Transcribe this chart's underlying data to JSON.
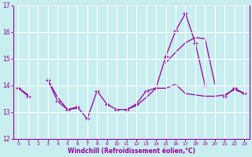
{
  "x": [
    0,
    1,
    2,
    3,
    4,
    5,
    6,
    7,
    8,
    9,
    10,
    11,
    12,
    13,
    14,
    15,
    16,
    17,
    18,
    19,
    20,
    21,
    22,
    23
  ],
  "line_spiky": [
    13.9,
    13.6,
    null,
    14.2,
    13.4,
    13.1,
    13.2,
    12.75,
    13.8,
    13.3,
    13.1,
    13.1,
    13.3,
    13.8,
    13.9,
    15.1,
    16.05,
    16.7,
    15.6,
    14.0,
    null,
    13.6,
    13.9,
    13.7
  ],
  "line_smooth": [
    13.9,
    13.65,
    null,
    14.2,
    13.55,
    13.1,
    13.15,
    null,
    null,
    null,
    null,
    13.1,
    13.25,
    13.55,
    13.9,
    13.9,
    14.05,
    13.7,
    13.65,
    13.6,
    13.6,
    13.65,
    13.85,
    13.7
  ],
  "line_rising": [
    13.9,
    null,
    null,
    14.2,
    null,
    null,
    null,
    null,
    null,
    null,
    null,
    null,
    null,
    null,
    null,
    14.85,
    15.25,
    15.6,
    15.8,
    15.75,
    14.05,
    null,
    null,
    13.7
  ],
  "ylim": [
    12,
    17
  ],
  "xlim_min": -0.5,
  "xlim_max": 23.5,
  "yticks": [
    12,
    13,
    14,
    15,
    16,
    17
  ],
  "xticks": [
    0,
    1,
    2,
    3,
    4,
    5,
    6,
    7,
    8,
    9,
    10,
    11,
    12,
    13,
    14,
    15,
    16,
    17,
    18,
    19,
    20,
    21,
    22,
    23
  ],
  "line_color": "#990099",
  "bg_color": "#c8eef0",
  "grid_color": "#ffffff",
  "xlabel": "Windchill (Refroidissement éolien,°C)",
  "xlabel_color": "#990099",
  "tick_color": "#990099"
}
